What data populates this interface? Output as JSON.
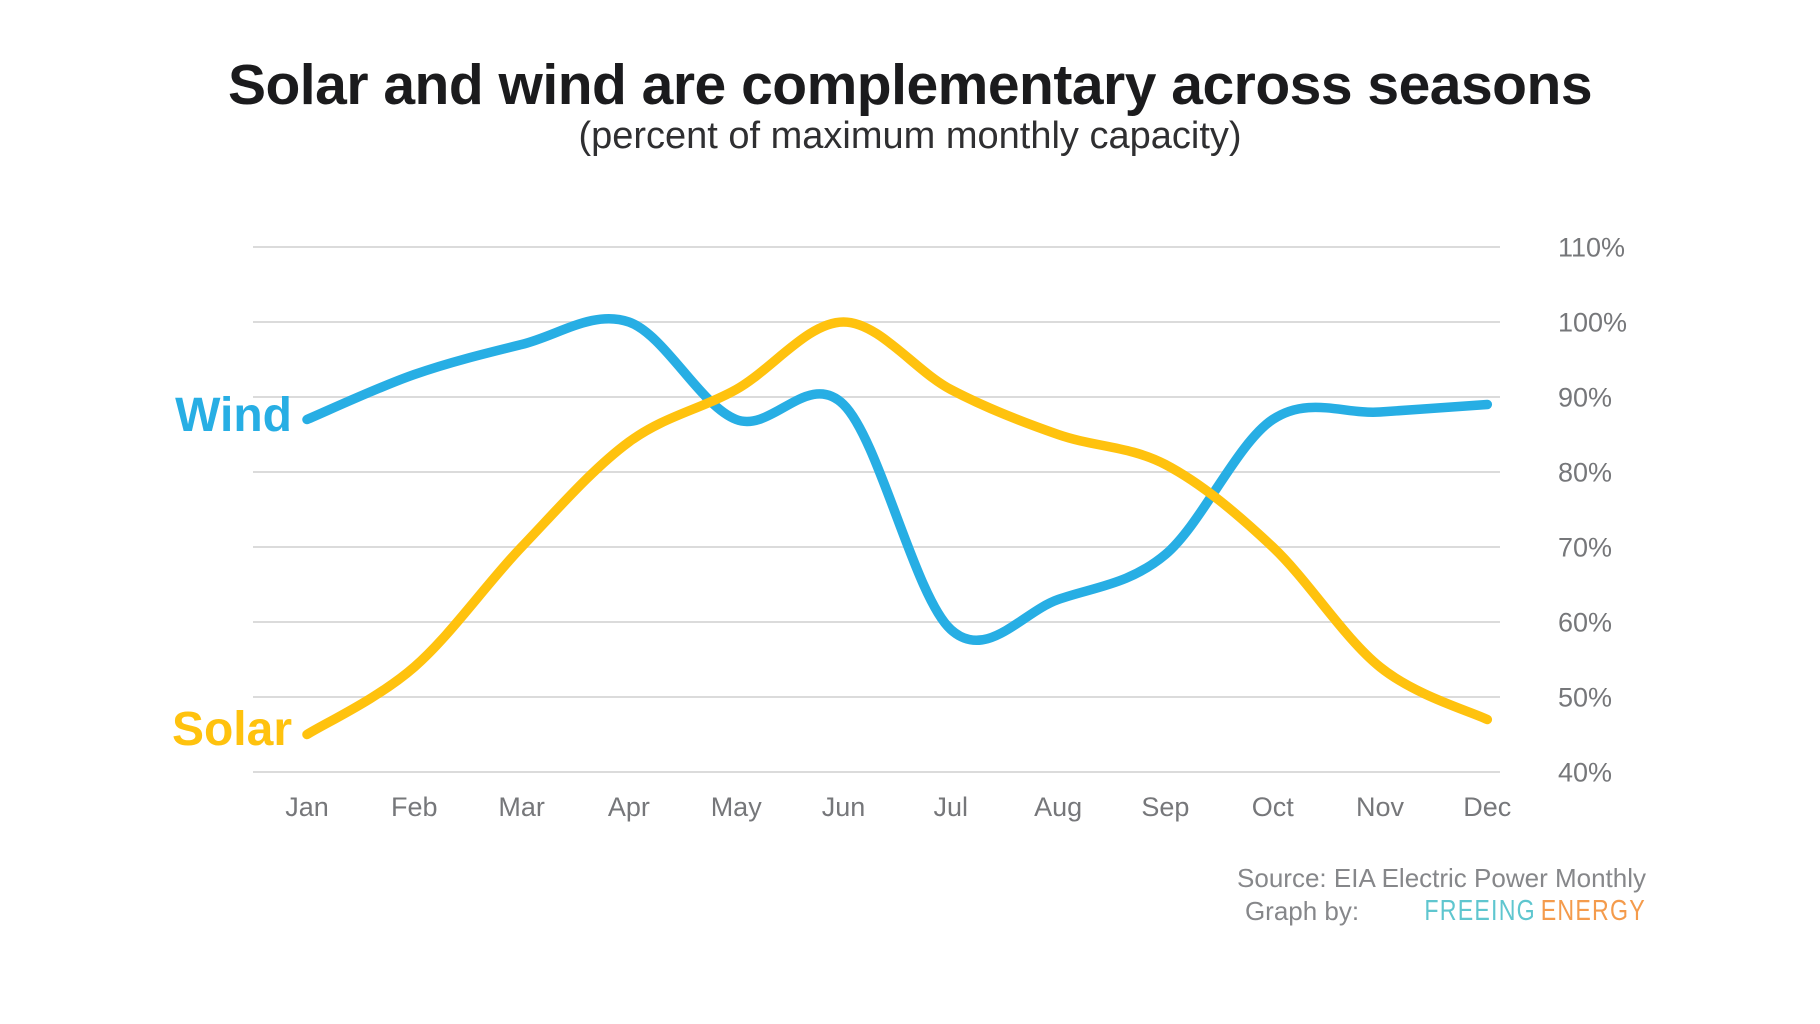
{
  "header": {
    "title": "Solar and wind are complementary across seasons",
    "subtitle": "(percent of maximum monthly capacity)"
  },
  "series_labels": {
    "wind": "Wind",
    "solar": "Solar"
  },
  "chart_data": {
    "type": "line",
    "categories": [
      "Jan",
      "Feb",
      "Mar",
      "Apr",
      "May",
      "Jun",
      "Jul",
      "Aug",
      "Sep",
      "Oct",
      "Nov",
      "Dec"
    ],
    "series": [
      {
        "name": "Wind",
        "color": "#27AEE4",
        "values": [
          87,
          93,
          97,
          100,
          87,
          89,
          59,
          63,
          69,
          87,
          88,
          89
        ]
      },
      {
        "name": "Solar",
        "color": "#FFC20E",
        "values": [
          45,
          54,
          70,
          84,
          91,
          100,
          91,
          85,
          81,
          70,
          54,
          47
        ]
      }
    ],
    "title": "Solar and wind are complementary across seasons",
    "subtitle": "(percent of maximum monthly capacity)",
    "xlabel": "",
    "ylabel": "",
    "ylim": [
      40,
      110
    ],
    "yticks": [
      110,
      100,
      90,
      80,
      70,
      60,
      50,
      40
    ],
    "ytick_suffix": "%",
    "grid": true,
    "legend_position": "inline-left"
  },
  "footer": {
    "source": "Source: EIA Electric Power Monthly",
    "graph_by": "Graph by:",
    "brand_word1": "FREEING",
    "brand_word2": "ENERGY"
  },
  "colors": {
    "wind_line": "#27AEE4",
    "solar_line": "#FFC20E",
    "gridline": "#DBDBDB",
    "axis_text": "#76777A",
    "title_text": "#1B1B1D",
    "footer_text": "#86878A",
    "brand_word1": "#5FC6CF",
    "brand_word2": "#F49B4C"
  }
}
